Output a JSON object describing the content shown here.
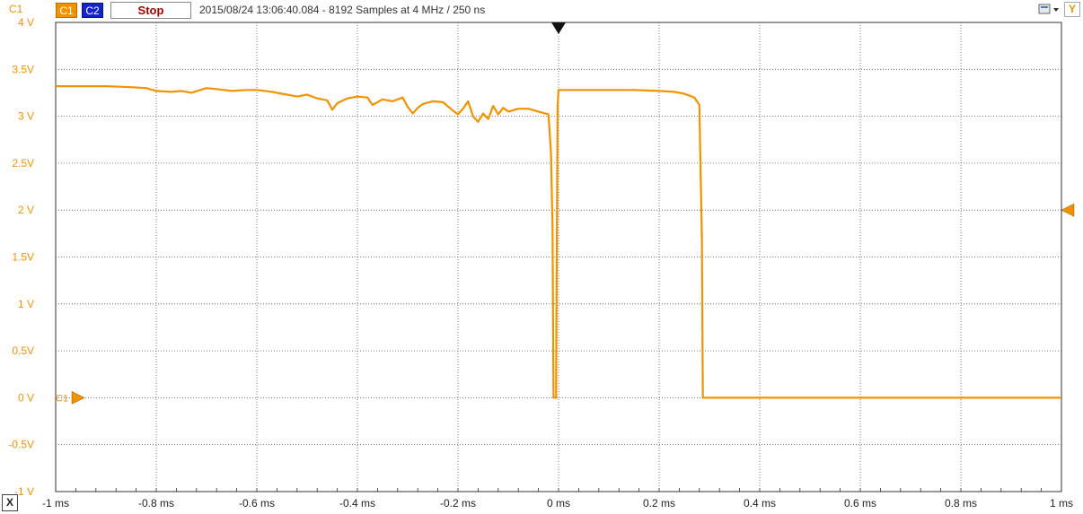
{
  "toolbar": {
    "channel_label": "C1",
    "c1_label": "C1",
    "c2_label": "C2",
    "stop_label": "Stop",
    "status_text": "2015/08/24  13:06:40.084 - 8192 Samples at 4 MHz / 250 ns",
    "y_label": "Y",
    "menu_icon": "menu-dropdown-icon"
  },
  "bottom_bar": {
    "x_label": "X"
  },
  "colors": {
    "c1": "#f39200",
    "c2": "#1524c8",
    "grid": "#555555",
    "background": "#ffffff"
  },
  "chart_data": {
    "type": "line",
    "title": "",
    "xlabel": "",
    "ylabel": "",
    "xlim": [
      -1,
      1
    ],
    "ylim": [
      -1,
      4
    ],
    "grid": true,
    "x_ticks": [
      "-1 ms",
      "-0.8 ms",
      "-0.6 ms",
      "-0.4 ms",
      "-0.2 ms",
      "0 ms",
      "0.2 ms",
      "0.4 ms",
      "0.6 ms",
      "0.8 ms",
      "1 ms"
    ],
    "y_ticks": [
      "4 V",
      "3.5V",
      "3 V",
      "2.5V",
      "2 V",
      "1.5V",
      "1 V",
      "0.5V",
      "0 V",
      "-0.5V",
      "-1 V"
    ],
    "markers": {
      "trigger_time": 0,
      "trigger_level": 2.0,
      "channel_offset_label": "C1",
      "channel_offset": 0
    },
    "series": [
      {
        "color": "#f39200",
        "x": [
          -1.0,
          -0.95,
          -0.9,
          -0.85,
          -0.82,
          -0.8,
          -0.77,
          -0.75,
          -0.73,
          -0.7,
          -0.68,
          -0.65,
          -0.62,
          -0.6,
          -0.57,
          -0.55,
          -0.52,
          -0.5,
          -0.48,
          -0.46,
          -0.45,
          -0.44,
          -0.42,
          -0.4,
          -0.38,
          -0.37,
          -0.35,
          -0.33,
          -0.31,
          -0.3,
          -0.29,
          -0.28,
          -0.27,
          -0.25,
          -0.23,
          -0.21,
          -0.2,
          -0.19,
          -0.18,
          -0.17,
          -0.16,
          -0.15,
          -0.14,
          -0.13,
          -0.12,
          -0.11,
          -0.1,
          -0.08,
          -0.06,
          -0.04,
          -0.02,
          -0.015,
          -0.012,
          -0.01,
          -0.005,
          -0.002,
          0.0,
          0.002,
          0.005,
          0.05,
          0.1,
          0.15,
          0.2,
          0.23,
          0.25,
          0.27,
          0.28,
          0.285,
          0.287,
          0.29,
          0.3,
          0.35,
          0.4,
          0.5,
          0.6,
          0.7,
          0.8,
          0.9,
          1.0
        ],
        "y": [
          3.32,
          3.32,
          3.32,
          3.31,
          3.3,
          3.27,
          3.26,
          3.27,
          3.25,
          3.3,
          3.29,
          3.27,
          3.28,
          3.28,
          3.26,
          3.24,
          3.21,
          3.23,
          3.19,
          3.17,
          3.07,
          3.14,
          3.19,
          3.21,
          3.2,
          3.12,
          3.18,
          3.16,
          3.2,
          3.1,
          3.03,
          3.09,
          3.13,
          3.16,
          3.15,
          3.06,
          3.02,
          3.08,
          3.16,
          3.0,
          2.94,
          3.03,
          2.97,
          3.11,
          3.02,
          3.09,
          3.05,
          3.08,
          3.08,
          3.05,
          3.02,
          2.6,
          1.8,
          0.0,
          0.0,
          3.1,
          3.28,
          3.28,
          3.28,
          3.28,
          3.28,
          3.28,
          3.27,
          3.26,
          3.24,
          3.2,
          3.12,
          1.7,
          0.0,
          0.0,
          0.0,
          0.0,
          0.0,
          0.0,
          0.0,
          0.0,
          0.0,
          0.0,
          0.0
        ]
      }
    ]
  }
}
